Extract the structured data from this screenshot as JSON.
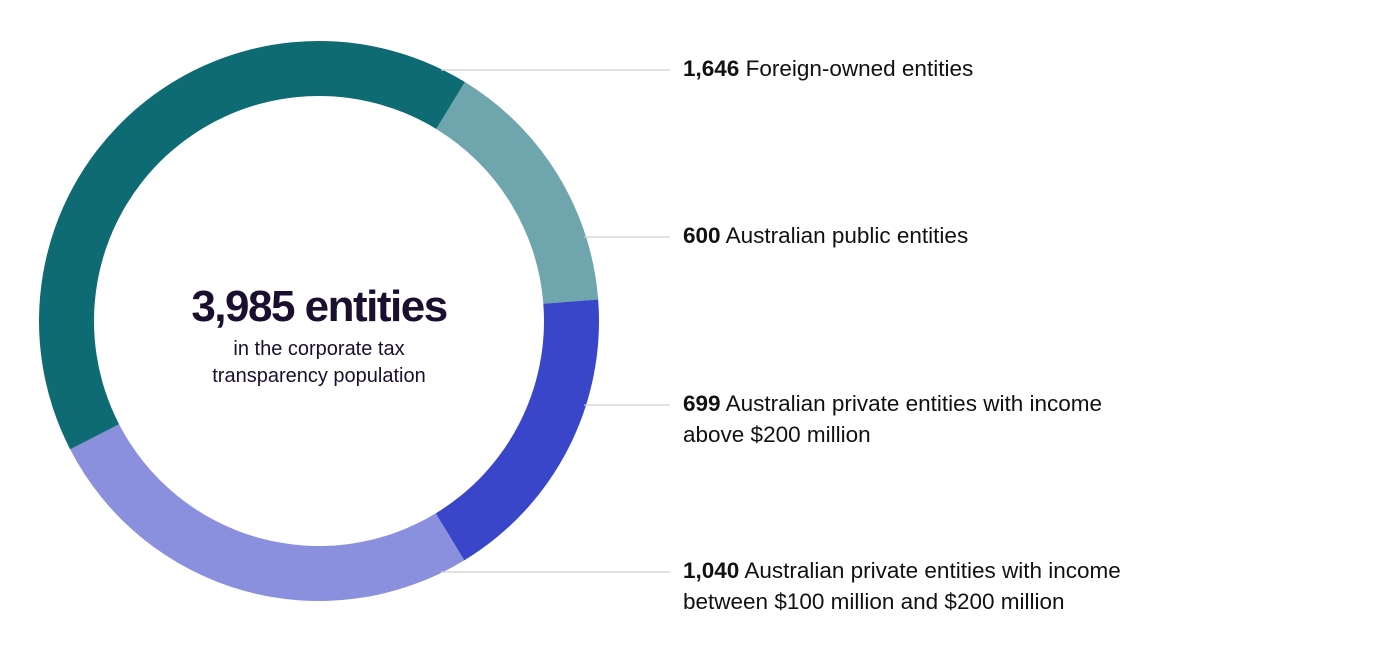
{
  "chart_data": {
    "type": "pie",
    "variant": "donut",
    "title": "3,985 entities",
    "subtitle_lines": [
      "in the corporate tax",
      "transparency population"
    ],
    "total": 3985,
    "segments": [
      {
        "value": 600,
        "value_label": "600",
        "lines": [
          "Australian public entities"
        ],
        "color": "#6fa5ad"
      },
      {
        "value": 699,
        "value_label": "699",
        "lines": [
          "Australian private entities with income",
          "above $200 million"
        ],
        "color": "#3a46c9"
      },
      {
        "value": 1040,
        "value_label": "1,040",
        "lines": [
          "Australian private entities with income",
          "between $100 million and $200 million"
        ],
        "color": "#8a90de"
      },
      {
        "value": 1646,
        "value_label": "1,646",
        "lines": [
          "Foreign-owned entities"
        ],
        "color": "#0f6b73"
      }
    ],
    "legend_order": [
      3,
      0,
      1,
      2
    ],
    "legend_placement": "right"
  }
}
